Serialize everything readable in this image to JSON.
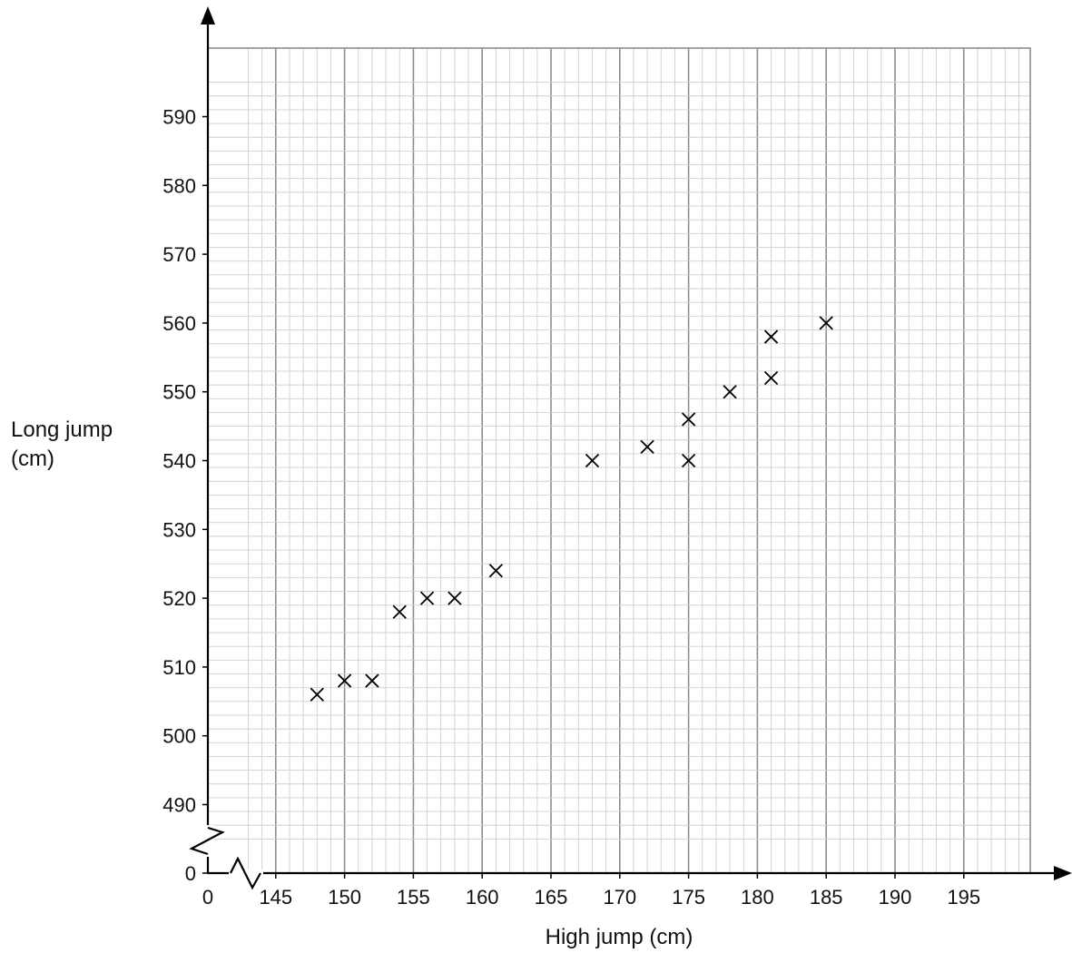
{
  "chart_data": {
    "type": "scatter",
    "title": "",
    "xlabel": "High jump (cm)",
    "ylabel_lines": [
      "Long jump",
      "(cm)"
    ],
    "x_axis_break": true,
    "y_axis_break": true,
    "xlim": [
      143,
      203
    ],
    "ylim": [
      485,
      595
    ],
    "x_ticks": [
      145,
      150,
      155,
      160,
      165,
      170,
      175,
      180,
      185,
      190,
      195
    ],
    "y_ticks": [
      490,
      500,
      510,
      520,
      530,
      540,
      550,
      560,
      570,
      580,
      590
    ],
    "origin_x_label": "0",
    "origin_y_label": "0",
    "grid": true,
    "marker": "x",
    "points": [
      {
        "x": 148,
        "y": 506
      },
      {
        "x": 150,
        "y": 508
      },
      {
        "x": 152,
        "y": 508
      },
      {
        "x": 154,
        "y": 518
      },
      {
        "x": 156,
        "y": 520
      },
      {
        "x": 158,
        "y": 520
      },
      {
        "x": 161,
        "y": 524
      },
      {
        "x": 168,
        "y": 540
      },
      {
        "x": 172,
        "y": 542
      },
      {
        "x": 175,
        "y": 546
      },
      {
        "x": 175,
        "y": 540
      },
      {
        "x": 178,
        "y": 550
      },
      {
        "x": 181,
        "y": 558
      },
      {
        "x": 181,
        "y": 552
      },
      {
        "x": 185,
        "y": 560
      }
    ]
  }
}
